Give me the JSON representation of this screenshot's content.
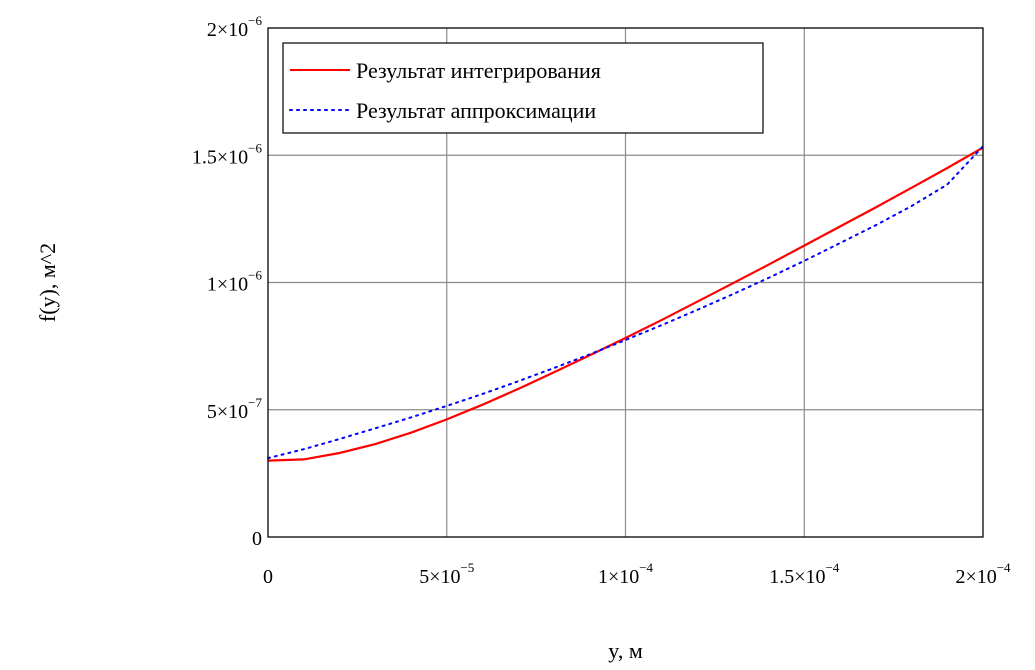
{
  "chart_data": {
    "type": "line",
    "title": "",
    "xlabel": "y, м",
    "ylabel": "f(y), м^2",
    "xlim": [
      0,
      0.0002
    ],
    "ylim": [
      0,
      2e-06
    ],
    "grid": true,
    "legend_position": "top-left",
    "x_ticks": [
      {
        "value": 0,
        "base": "0",
        "exp": ""
      },
      {
        "value": 5e-05,
        "base": "5×10",
        "exp": "−5"
      },
      {
        "value": 0.0001,
        "base": "1×10",
        "exp": "−4"
      },
      {
        "value": 0.00015,
        "base": "1.5×10",
        "exp": "−4"
      },
      {
        "value": 0.0002,
        "base": "2×10",
        "exp": "−4"
      }
    ],
    "y_ticks": [
      {
        "value": 0,
        "base": "0",
        "exp": ""
      },
      {
        "value": 5e-07,
        "base": "5×10",
        "exp": "−7"
      },
      {
        "value": 1e-06,
        "base": "1×10",
        "exp": "−6"
      },
      {
        "value": 1.5e-06,
        "base": "1.5×10",
        "exp": "−6"
      },
      {
        "value": 2e-06,
        "base": "2×10",
        "exp": "−6"
      }
    ],
    "series": [
      {
        "name": "Результат интегрирования",
        "color": "#ff0000",
        "style": "solid",
        "x": [
          0,
          1e-05,
          2e-05,
          3e-05,
          4e-05,
          5e-05,
          6e-05,
          7e-05,
          8e-05,
          9e-05,
          0.0001,
          0.00011,
          0.00012,
          0.00013,
          0.00014,
          0.00015,
          0.00016,
          0.00017,
          0.00018,
          0.00019,
          0.0002
        ],
        "y": [
          3e-07,
          3.05e-07,
          3.3e-07,
          3.65e-07,
          4.1e-07,
          4.62e-07,
          5.2e-07,
          5.82e-07,
          6.47e-07,
          7.14e-07,
          7.82e-07,
          8.52e-07,
          9.24e-07,
          9.97e-07,
          1.07e-06,
          1.145e-06,
          1.22e-06,
          1.295e-06,
          1.372e-06,
          1.45e-06,
          1.53e-06
        ]
      },
      {
        "name": "Результат аппроксимации",
        "color": "#0000ff",
        "style": "dotted",
        "x": [
          0,
          1e-05,
          2e-05,
          3e-05,
          4e-05,
          5e-05,
          6e-05,
          7e-05,
          8e-05,
          9e-05,
          0.0001,
          0.00011,
          0.00012,
          0.00013,
          0.00014,
          0.00015,
          0.00016,
          0.00017,
          0.00018,
          0.00019,
          0.0002
        ],
        "y": [
          3.1e-07,
          3.45e-07,
          3.85e-07,
          4.27e-07,
          4.7e-07,
          5.15e-07,
          5.62e-07,
          6.12e-07,
          6.64e-07,
          7.18e-07,
          7.74e-07,
          8.32e-07,
          8.92e-07,
          9.54e-07,
          1.018e-06,
          1.085e-06,
          1.155e-06,
          1.225e-06,
          1.3e-06,
          1.385e-06,
          1.535e-06
        ]
      }
    ]
  }
}
